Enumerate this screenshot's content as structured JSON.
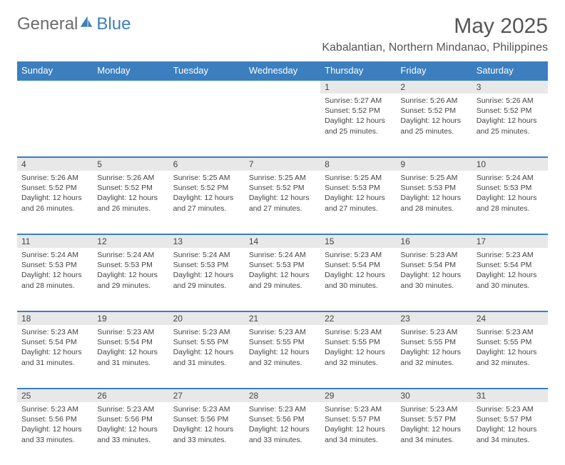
{
  "brand": {
    "part1": "General",
    "part2": "Blue"
  },
  "title": "May 2025",
  "subtitle": "Kabalantian, Northern Mindanao, Philippines",
  "colors": {
    "header_bg": "#3b7fbf",
    "header_text": "#ffffff",
    "daynum_bg": "#e8e8e8",
    "border_top": "#3b7fbf",
    "body_text": "#444444",
    "title_text": "#555555"
  },
  "day_headers": [
    "Sunday",
    "Monday",
    "Tuesday",
    "Wednesday",
    "Thursday",
    "Friday",
    "Saturday"
  ],
  "weeks": [
    [
      null,
      null,
      null,
      null,
      {
        "n": "1",
        "sr": "5:27 AM",
        "ss": "5:52 PM",
        "dl": "12 hours and 25 minutes."
      },
      {
        "n": "2",
        "sr": "5:26 AM",
        "ss": "5:52 PM",
        "dl": "12 hours and 25 minutes."
      },
      {
        "n": "3",
        "sr": "5:26 AM",
        "ss": "5:52 PM",
        "dl": "12 hours and 25 minutes."
      }
    ],
    [
      {
        "n": "4",
        "sr": "5:26 AM",
        "ss": "5:52 PM",
        "dl": "12 hours and 26 minutes."
      },
      {
        "n": "5",
        "sr": "5:26 AM",
        "ss": "5:52 PM",
        "dl": "12 hours and 26 minutes."
      },
      {
        "n": "6",
        "sr": "5:25 AM",
        "ss": "5:52 PM",
        "dl": "12 hours and 27 minutes."
      },
      {
        "n": "7",
        "sr": "5:25 AM",
        "ss": "5:52 PM",
        "dl": "12 hours and 27 minutes."
      },
      {
        "n": "8",
        "sr": "5:25 AM",
        "ss": "5:53 PM",
        "dl": "12 hours and 27 minutes."
      },
      {
        "n": "9",
        "sr": "5:25 AM",
        "ss": "5:53 PM",
        "dl": "12 hours and 28 minutes."
      },
      {
        "n": "10",
        "sr": "5:24 AM",
        "ss": "5:53 PM",
        "dl": "12 hours and 28 minutes."
      }
    ],
    [
      {
        "n": "11",
        "sr": "5:24 AM",
        "ss": "5:53 PM",
        "dl": "12 hours and 28 minutes."
      },
      {
        "n": "12",
        "sr": "5:24 AM",
        "ss": "5:53 PM",
        "dl": "12 hours and 29 minutes."
      },
      {
        "n": "13",
        "sr": "5:24 AM",
        "ss": "5:53 PM",
        "dl": "12 hours and 29 minutes."
      },
      {
        "n": "14",
        "sr": "5:24 AM",
        "ss": "5:53 PM",
        "dl": "12 hours and 29 minutes."
      },
      {
        "n": "15",
        "sr": "5:23 AM",
        "ss": "5:54 PM",
        "dl": "12 hours and 30 minutes."
      },
      {
        "n": "16",
        "sr": "5:23 AM",
        "ss": "5:54 PM",
        "dl": "12 hours and 30 minutes."
      },
      {
        "n": "17",
        "sr": "5:23 AM",
        "ss": "5:54 PM",
        "dl": "12 hours and 30 minutes."
      }
    ],
    [
      {
        "n": "18",
        "sr": "5:23 AM",
        "ss": "5:54 PM",
        "dl": "12 hours and 31 minutes."
      },
      {
        "n": "19",
        "sr": "5:23 AM",
        "ss": "5:54 PM",
        "dl": "12 hours and 31 minutes."
      },
      {
        "n": "20",
        "sr": "5:23 AM",
        "ss": "5:55 PM",
        "dl": "12 hours and 31 minutes."
      },
      {
        "n": "21",
        "sr": "5:23 AM",
        "ss": "5:55 PM",
        "dl": "12 hours and 32 minutes."
      },
      {
        "n": "22",
        "sr": "5:23 AM",
        "ss": "5:55 PM",
        "dl": "12 hours and 32 minutes."
      },
      {
        "n": "23",
        "sr": "5:23 AM",
        "ss": "5:55 PM",
        "dl": "12 hours and 32 minutes."
      },
      {
        "n": "24",
        "sr": "5:23 AM",
        "ss": "5:55 PM",
        "dl": "12 hours and 32 minutes."
      }
    ],
    [
      {
        "n": "25",
        "sr": "5:23 AM",
        "ss": "5:56 PM",
        "dl": "12 hours and 33 minutes."
      },
      {
        "n": "26",
        "sr": "5:23 AM",
        "ss": "5:56 PM",
        "dl": "12 hours and 33 minutes."
      },
      {
        "n": "27",
        "sr": "5:23 AM",
        "ss": "5:56 PM",
        "dl": "12 hours and 33 minutes."
      },
      {
        "n": "28",
        "sr": "5:23 AM",
        "ss": "5:56 PM",
        "dl": "12 hours and 33 minutes."
      },
      {
        "n": "29",
        "sr": "5:23 AM",
        "ss": "5:57 PM",
        "dl": "12 hours and 34 minutes."
      },
      {
        "n": "30",
        "sr": "5:23 AM",
        "ss": "5:57 PM",
        "dl": "12 hours and 34 minutes."
      },
      {
        "n": "31",
        "sr": "5:23 AM",
        "ss": "5:57 PM",
        "dl": "12 hours and 34 minutes."
      }
    ]
  ],
  "labels": {
    "sunrise": "Sunrise:",
    "sunset": "Sunset:",
    "daylight": "Daylight:"
  }
}
